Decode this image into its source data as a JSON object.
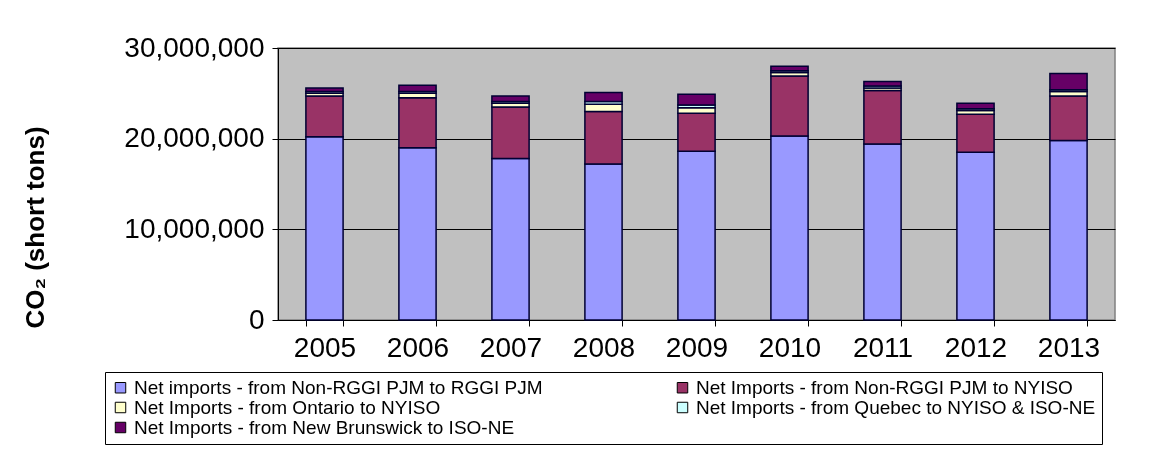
{
  "chart_data": {
    "type": "bar",
    "stacked": true,
    "categories": [
      "2005",
      "2006",
      "2007",
      "2008",
      "2009",
      "2010",
      "2011",
      "2012",
      "2013"
    ],
    "ylabel": "CO₂ (short tons)",
    "ylim": [
      0,
      30000000
    ],
    "yticks": [
      0,
      {
        "value": 10000000,
        "label": "10,000,000"
      },
      {
        "value": 20000000,
        "label": "20,000,000"
      },
      {
        "value": 30000000,
        "label": "30,000,000"
      }
    ],
    "grid": "y",
    "legend": "bottom",
    "series": [
      {
        "name": "Net imports - from Non-RGGI PJM to RGGI PJM",
        "color": "#9999ff",
        "values": [
          20200000,
          19000000,
          17800000,
          17200000,
          18600000,
          20300000,
          19400000,
          18500000,
          19800000
        ]
      },
      {
        "name": "Net Imports - from Non-RGGI PJM to NYISO",
        "color": "#993366",
        "values": [
          4500000,
          5500000,
          5700000,
          5800000,
          4200000,
          6600000,
          5900000,
          4200000,
          4900000
        ]
      },
      {
        "name": "Net Imports - from Ontario to NYISO",
        "color": "#ffffcc",
        "values": [
          300000,
          500000,
          400000,
          800000,
          600000,
          400000,
          300000,
          400000,
          500000
        ]
      },
      {
        "name": "Net Imports - from Quebec to NYISO & ISO-NE",
        "color": "#ccffff",
        "values": [
          200000,
          200000,
          200000,
          300000,
          300000,
          200000,
          200000,
          200000,
          200000
        ]
      },
      {
        "name": "Net Imports - from New Brunswick to ISO-NE",
        "color": "#660066",
        "values": [
          400000,
          700000,
          600000,
          1000000,
          1200000,
          500000,
          500000,
          600000,
          1800000
        ]
      }
    ]
  }
}
